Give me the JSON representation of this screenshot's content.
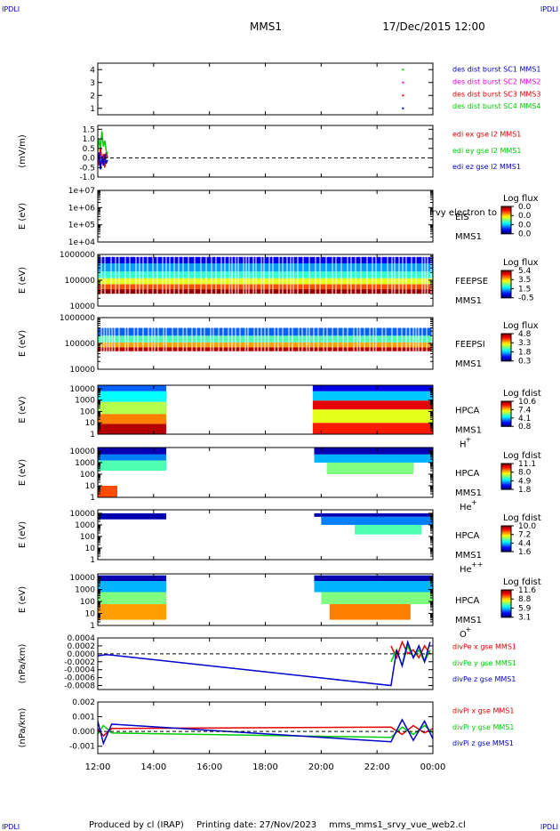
{
  "header": {
    "corner_tl": "IPDLI",
    "corner_tr": "IPDLI",
    "corner_bl": "IPDLI",
    "corner_br": "IPDLI",
    "spacecraft": "MMS1",
    "datetime": "17/Dec/2015 12:00"
  },
  "footer": {
    "produced_by": "Produced by cl (IRAP)",
    "printing_date": "Printing date: 27/Nov/2023",
    "script": "mms_mms1_srvy_vue_web2.cl"
  },
  "colors": {
    "red": "#e60000",
    "green": "#00cc00",
    "blue": "#0000cc",
    "magenta": "#e600e6"
  },
  "chart_data": [
    {
      "id": "burst",
      "type": "scatter",
      "ylim": [
        0.5,
        4.5
      ],
      "yticks": [
        {
          "v": 1,
          "label": "1"
        },
        {
          "v": 2,
          "label": "2"
        },
        {
          "v": 3,
          "label": "3"
        },
        {
          "v": 4,
          "label": "4"
        }
      ],
      "ylabel": "",
      "legend": [
        {
          "text": "des dist burst SC1 MMS1",
          "color": "#0000cc"
        },
        {
          "text": "des dist burst SC2 MMS2",
          "color": "#e600e6"
        },
        {
          "text": "des dist burst SC3 MMS3",
          "color": "#e60000"
        },
        {
          "text": "des dist burst SC4 MMS4",
          "color": "#00cc00"
        }
      ],
      "points": [
        {
          "x": 22.93,
          "y": 1,
          "color": "#0000cc"
        },
        {
          "x": 22.93,
          "y": 2,
          "color": "#e60000"
        },
        {
          "x": 22.93,
          "y": 3,
          "color": "#e600e6"
        },
        {
          "x": 22.93,
          "y": 4,
          "color": "#00cc00"
        }
      ]
    },
    {
      "id": "edi",
      "type": "line",
      "ylim": [
        -1.0,
        1.7
      ],
      "yticks": [
        {
          "v": 1.5,
          "label": "1.5"
        },
        {
          "v": 1.0,
          "label": "1.0"
        },
        {
          "v": 0.5,
          "label": "0.5"
        },
        {
          "v": 0.0,
          "label": "0.0"
        },
        {
          "v": -0.5,
          "label": "-0.5"
        },
        {
          "v": -1.0,
          "label": "-1.0"
        }
      ],
      "ylabel": "(mV/m)",
      "zero_line": true,
      "legend": [
        {
          "text": "edi ex gse l2 MMS1",
          "color": "#e60000"
        },
        {
          "text": "edi ey gse l2 MMS1",
          "color": "#00cc00"
        },
        {
          "text": "edi ez gse l2 MMS1",
          "color": "#0000cc"
        }
      ],
      "series": [
        {
          "color": "#e60000",
          "x": [
            12.0,
            12.05,
            12.1,
            12.15,
            12.2,
            12.25,
            12.3,
            12.35
          ],
          "y": [
            0.1,
            -0.4,
            0.6,
            -0.3,
            0.2,
            -0.5,
            0.3,
            0.0
          ]
        },
        {
          "color": "#00cc00",
          "x": [
            12.0,
            12.05,
            12.1,
            12.15,
            12.2,
            12.25,
            12.3,
            12.35
          ],
          "y": [
            0.3,
            1.0,
            0.5,
            1.4,
            0.6,
            0.9,
            0.4,
            0.2
          ]
        },
        {
          "color": "#0000cc",
          "x": [
            12.0,
            12.05,
            12.1,
            12.15,
            12.2,
            12.25,
            12.3,
            12.35
          ],
          "y": [
            -0.2,
            0.3,
            -0.6,
            0.1,
            -0.4,
            0.2,
            -0.3,
            -0.1
          ]
        }
      ]
    },
    {
      "id": "eis",
      "type": "heatmap",
      "log": true,
      "ylim": [
        10000,
        10000000
      ],
      "yticks": [
        {
          "v": 10000000,
          "label": "1e+07"
        },
        {
          "v": 1000000,
          "label": "1e+06"
        },
        {
          "v": 100000,
          "label": "1e+05"
        },
        {
          "v": 10000,
          "label": "1e+04"
        }
      ],
      "ylabel": "E (eV)",
      "instrument": "EIS",
      "sub": "MMS1",
      "overlay": "lrvy electron to",
      "cbar_title": "Log flux",
      "cbar_ticks": [
        "0.0",
        "0.0",
        "0.0",
        "0.0"
      ],
      "bands": []
    },
    {
      "id": "feepse",
      "type": "heatmap",
      "log": true,
      "ylim": [
        10000,
        1000000
      ],
      "yticks": [
        {
          "v": 1000000,
          "label": "1000000"
        },
        {
          "v": 100000,
          "label": "100000"
        },
        {
          "v": 10000,
          "label": "10000"
        }
      ],
      "ylabel": "E (eV)",
      "instrument": "FEEPSE",
      "sub": "MMS1",
      "cbar_title": "Log flux",
      "cbar_ticks": [
        "5.4",
        "3.5",
        "1.5",
        "-0.5"
      ],
      "striped": true,
      "bands": [
        {
          "x0": 12.0,
          "x1": 24.0,
          "lo": 30000,
          "hi": 45000,
          "c": 0.98
        },
        {
          "x0": 12.0,
          "x1": 24.0,
          "lo": 45000,
          "hi": 70000,
          "c": 0.8
        },
        {
          "x0": 12.0,
          "x1": 24.0,
          "lo": 70000,
          "hi": 120000,
          "c": 0.6
        },
        {
          "x0": 12.0,
          "x1": 24.0,
          "lo": 120000,
          "hi": 220000,
          "c": 0.42
        },
        {
          "x0": 12.0,
          "x1": 24.0,
          "lo": 220000,
          "hi": 450000,
          "c": 0.28
        },
        {
          "x0": 12.0,
          "x1": 24.0,
          "lo": 450000,
          "hi": 800000,
          "c": 0.12
        }
      ]
    },
    {
      "id": "feepsi",
      "type": "heatmap",
      "log": true,
      "ylim": [
        10000,
        1000000
      ],
      "yticks": [
        {
          "v": 1000000,
          "label": "1000000"
        },
        {
          "v": 100000,
          "label": "100000"
        },
        {
          "v": 10000,
          "label": "10000"
        }
      ],
      "ylabel": "E (eV)",
      "instrument": "FEEPSI",
      "sub": "MMS1",
      "cbar_title": "Log flux",
      "cbar_ticks": [
        "4.8",
        "3.3",
        "1.8",
        "0.3"
      ],
      "striped": true,
      "bands": [
        {
          "x0": 12.0,
          "x1": 24.0,
          "lo": 50000,
          "hi": 70000,
          "c": 0.95
        },
        {
          "x0": 12.0,
          "x1": 24.0,
          "lo": 70000,
          "hi": 110000,
          "c": 0.72
        },
        {
          "x0": 12.0,
          "x1": 24.0,
          "lo": 110000,
          "hi": 200000,
          "c": 0.45
        },
        {
          "x0": 12.0,
          "x1": 24.0,
          "lo": 200000,
          "hi": 400000,
          "c": 0.22
        }
      ]
    },
    {
      "id": "hpca_h",
      "type": "heatmap",
      "log": true,
      "ylim": [
        1,
        20000
      ],
      "yticks": [
        {
          "v": 10000,
          "label": "10000"
        },
        {
          "v": 1000,
          "label": "1000"
        },
        {
          "v": 100,
          "label": "100"
        },
        {
          "v": 10,
          "label": "10"
        },
        {
          "v": 1,
          "label": "1"
        }
      ],
      "ylabel": "E (eV)",
      "instrument": "HPCA",
      "sub": "MMS1",
      "species": "H",
      "charge": "+",
      "cbar_title": "Log fdist",
      "cbar_ticks": [
        "10.6",
        "7.4",
        "4.1",
        "0.8"
      ],
      "bands": [
        {
          "x0": 12.0,
          "x1": 14.45,
          "lo": 1,
          "hi": 8,
          "c": 0.95
        },
        {
          "x0": 12.0,
          "x1": 14.45,
          "lo": 8,
          "hi": 60,
          "c": 0.75
        },
        {
          "x0": 12.0,
          "x1": 14.45,
          "lo": 60,
          "hi": 700,
          "c": 0.55
        },
        {
          "x0": 12.0,
          "x1": 14.45,
          "lo": 700,
          "hi": 6000,
          "c": 0.38
        },
        {
          "x0": 12.0,
          "x1": 14.45,
          "lo": 6000,
          "hi": 20000,
          "c": 0.22
        },
        {
          "x0": 19.7,
          "x1": 24.0,
          "lo": 1,
          "hi": 10,
          "c": 0.85
        },
        {
          "x0": 19.7,
          "x1": 24.0,
          "lo": 10,
          "hi": 150,
          "c": 0.6
        },
        {
          "x0": 19.7,
          "x1": 24.0,
          "lo": 150,
          "hi": 900,
          "c": 0.9
        },
        {
          "x0": 19.7,
          "x1": 24.0,
          "lo": 900,
          "hi": 6000,
          "c": 0.32
        },
        {
          "x0": 19.7,
          "x1": 24.0,
          "lo": 6000,
          "hi": 20000,
          "c": 0.1
        }
      ]
    },
    {
      "id": "hpca_he",
      "type": "heatmap",
      "log": true,
      "ylim": [
        1,
        20000
      ],
      "yticks": [
        {
          "v": 10000,
          "label": "10000"
        },
        {
          "v": 1000,
          "label": "1000"
        },
        {
          "v": 100,
          "label": "100"
        },
        {
          "v": 10,
          "label": "10"
        },
        {
          "v": 1,
          "label": "1"
        }
      ],
      "ylabel": "E (eV)",
      "instrument": "HPCA",
      "sub": "MMS1",
      "species": "He",
      "charge": "+",
      "cbar_title": "Log fdist",
      "cbar_ticks": [
        "11.1",
        "8.0",
        "4.9",
        "1.8"
      ],
      "bands": [
        {
          "x0": 12.0,
          "x1": 14.45,
          "lo": 5000,
          "hi": 20000,
          "c": 0.05
        },
        {
          "x0": 12.0,
          "x1": 14.45,
          "lo": 1500,
          "hi": 5000,
          "c": 0.25
        },
        {
          "x0": 12.0,
          "x1": 14.45,
          "lo": 200,
          "hi": 1500,
          "c": 0.45
        },
        {
          "x0": 12.0,
          "x1": 12.7,
          "lo": 1,
          "hi": 10,
          "c": 0.8
        },
        {
          "x0": 19.75,
          "x1": 24.0,
          "lo": 5000,
          "hi": 20000,
          "c": 0.05
        },
        {
          "x0": 19.75,
          "x1": 24.0,
          "lo": 1000,
          "hi": 5000,
          "c": 0.3
        },
        {
          "x0": 20.2,
          "x1": 23.3,
          "lo": 100,
          "hi": 1000,
          "c": 0.5
        }
      ]
    },
    {
      "id": "hpca_hepp",
      "type": "heatmap",
      "log": true,
      "ylim": [
        1,
        20000
      ],
      "yticks": [
        {
          "v": 10000,
          "label": "10000"
        },
        {
          "v": 1000,
          "label": "1000"
        },
        {
          "v": 100,
          "label": "100"
        },
        {
          "v": 10,
          "label": "10"
        },
        {
          "v": 1,
          "label": "1"
        }
      ],
      "ylabel": "E (eV)",
      "instrument": "HPCA",
      "sub": "MMS1",
      "species": "He",
      "charge": "++",
      "cbar_title": "Log fdist",
      "cbar_ticks": [
        "10.0",
        "7.2",
        "4.4",
        "1.6"
      ],
      "bands": [
        {
          "x0": 12.0,
          "x1": 14.45,
          "lo": 3000,
          "hi": 10000,
          "c": 0.05
        },
        {
          "x0": 19.75,
          "x1": 24.0,
          "lo": 5000,
          "hi": 10000,
          "c": 0.05
        },
        {
          "x0": 20.0,
          "x1": 24.0,
          "lo": 1000,
          "hi": 5000,
          "c": 0.25
        },
        {
          "x0": 21.2,
          "x1": 23.6,
          "lo": 150,
          "hi": 1000,
          "c": 0.45
        }
      ]
    },
    {
      "id": "hpca_o",
      "type": "heatmap",
      "log": true,
      "ylim": [
        1,
        20000
      ],
      "yticks": [
        {
          "v": 10000,
          "label": "10000"
        },
        {
          "v": 1000,
          "label": "1000"
        },
        {
          "v": 100,
          "label": "100"
        },
        {
          "v": 10,
          "label": "10"
        },
        {
          "v": 1,
          "label": "1"
        }
      ],
      "ylabel": "E (eV)",
      "instrument": "HPCA",
      "sub": "MMS1",
      "species": "O",
      "charge": "+",
      "cbar_title": "Log fdist",
      "cbar_ticks": [
        "11.6",
        "8.8",
        "5.9",
        "3.1"
      ],
      "bands": [
        {
          "x0": 12.0,
          "x1": 14.45,
          "lo": 5000,
          "hi": 15000,
          "c": 0.05
        },
        {
          "x0": 12.0,
          "x1": 14.45,
          "lo": 600,
          "hi": 5000,
          "c": 0.3
        },
        {
          "x0": 12.0,
          "x1": 14.45,
          "lo": 60,
          "hi": 600,
          "c": 0.5
        },
        {
          "x0": 12.0,
          "x1": 14.45,
          "lo": 3,
          "hi": 60,
          "c": 0.72
        },
        {
          "x0": 19.75,
          "x1": 24.0,
          "lo": 5000,
          "hi": 15000,
          "c": 0.05
        },
        {
          "x0": 19.75,
          "x1": 24.0,
          "lo": 600,
          "hi": 5000,
          "c": 0.3
        },
        {
          "x0": 20.0,
          "x1": 24.0,
          "lo": 60,
          "hi": 600,
          "c": 0.5
        },
        {
          "x0": 20.3,
          "x1": 23.2,
          "lo": 3,
          "hi": 60,
          "c": 0.75
        }
      ]
    },
    {
      "id": "divpe",
      "type": "line",
      "ylim": [
        -0.0009,
        0.0004
      ],
      "yticks": [
        {
          "v": 0.0004,
          "label": "0.0004"
        },
        {
          "v": 0.0002,
          "label": "0.0002"
        },
        {
          "v": 0.0,
          "label": "0.0000"
        },
        {
          "v": -0.0002,
          "label": "-0.0002"
        },
        {
          "v": -0.0004,
          "label": "-0.0004"
        },
        {
          "v": -0.0006,
          "label": "-0.0006"
        },
        {
          "v": -0.0008,
          "label": "-0.0008"
        }
      ],
      "ylabel": "(nPa/km)",
      "zero_line": true,
      "legend": [
        {
          "text": "divPe x gse MMS1",
          "color": "#e60000"
        },
        {
          "text": "divPe y gse MMS1",
          "color": "#00cc00"
        },
        {
          "text": "divPe z gse MMS1",
          "color": "#0000cc"
        }
      ],
      "series": [
        {
          "color": "#e60000",
          "x": [
            22.5,
            22.7,
            22.9,
            23.1,
            23.3,
            23.5,
            23.7,
            23.9
          ],
          "y": [
            0.0002,
            -0.0001,
            0.0003,
            0.0,
            0.0001,
            -0.0001,
            0.0002,
            0.0
          ]
        },
        {
          "color": "#00cc00",
          "x": [
            22.5,
            22.7,
            22.9,
            23.1,
            23.3,
            23.5,
            23.7,
            23.9
          ],
          "y": [
            -0.0002,
            0.0001,
            -0.0003,
            0.0002,
            -0.0001,
            0.0001,
            -0.0002,
            0.0001
          ]
        },
        {
          "color": "#0000cc",
          "x": [
            12.0,
            12.3,
            12.6,
            22.5,
            22.7,
            22.9,
            23.1,
            23.3,
            23.5,
            23.7,
            23.9
          ],
          "y": [
            -5e-05,
            -2e-05,
            -4e-05,
            -0.0008,
            0.0001,
            -0.0003,
            0.0003,
            -0.0001,
            0.0002,
            -0.0002,
            0.0003
          ]
        }
      ]
    },
    {
      "id": "divpi",
      "type": "line",
      "ylim": [
        -0.0015,
        0.002
      ],
      "yticks": [
        {
          "v": 0.002,
          "label": "0.002"
        },
        {
          "v": 0.001,
          "label": "0.001"
        },
        {
          "v": 0.0,
          "label": "0.000"
        },
        {
          "v": -0.001,
          "label": "-0.001"
        }
      ],
      "ylabel": "(nPa/km)",
      "zero_line": true,
      "legend": [
        {
          "text": "divPi x gse MMS1",
          "color": "#e60000"
        },
        {
          "text": "divPi y gse MMS1",
          "color": "#00cc00"
        },
        {
          "text": "divPi z gse MMS1",
          "color": "#0000cc"
        }
      ],
      "series": [
        {
          "color": "#e60000",
          "x": [
            12.0,
            12.2,
            12.5,
            22.5,
            22.9,
            23.3,
            23.7,
            24.0
          ],
          "y": [
            0.0002,
            -0.0003,
            0.0002,
            0.0003,
            -0.0002,
            0.0004,
            -0.0001,
            0.0002
          ]
        },
        {
          "color": "#00cc00",
          "x": [
            12.0,
            12.2,
            12.5,
            22.5,
            22.9,
            23.3,
            23.7,
            24.0
          ],
          "y": [
            -0.0002,
            0.0004,
            -0.0001,
            -0.0004,
            0.0003,
            -0.0002,
            0.0004,
            -0.0001
          ]
        },
        {
          "color": "#0000cc",
          "x": [
            12.0,
            12.2,
            12.5,
            22.5,
            22.9,
            23.3,
            23.7,
            24.0
          ],
          "y": [
            0.0007,
            -0.0008,
            0.0005,
            -0.0007,
            0.0008,
            -0.0006,
            0.0007,
            -0.0005
          ]
        }
      ]
    }
  ],
  "xaxis": {
    "xlim": [
      12,
      24
    ],
    "ticks": [
      {
        "v": 12,
        "label": "12:00"
      },
      {
        "v": 14,
        "label": "14:00"
      },
      {
        "v": 16,
        "label": "16:00"
      },
      {
        "v": 18,
        "label": "18:00"
      },
      {
        "v": 20,
        "label": "20:00"
      },
      {
        "v": 22,
        "label": "22:00"
      },
      {
        "v": 24,
        "label": "00:00"
      }
    ]
  }
}
